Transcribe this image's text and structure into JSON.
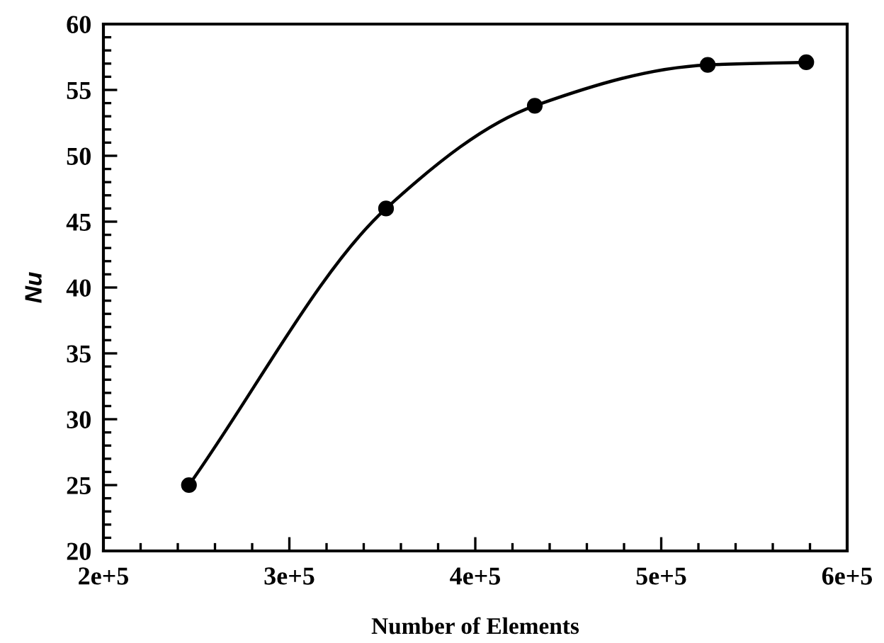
{
  "chart_data": {
    "type": "line",
    "xlabel": "Number of Elements",
    "ylabel": "Nu",
    "x": [
      246000,
      352000,
      432000,
      525000,
      578000
    ],
    "series": [
      {
        "color": "#000000",
        "values": [
          25.0,
          46.0,
          53.8,
          56.9,
          57.1
        ]
      }
    ],
    "marker": "circle",
    "line_style": "solid",
    "grid": false,
    "legend": false,
    "xlim": [
      200000,
      600000
    ],
    "xticks": [
      {
        "value": 200000,
        "label": "2e+5"
      },
      {
        "value": 220000,
        "label": null
      },
      {
        "value": 240000,
        "label": null
      },
      {
        "value": 260000,
        "label": null
      },
      {
        "value": 280000,
        "label": null
      },
      {
        "value": 300000,
        "label": "3e+5"
      },
      {
        "value": 320000,
        "label": null
      },
      {
        "value": 340000,
        "label": null
      },
      {
        "value": 360000,
        "label": null
      },
      {
        "value": 380000,
        "label": null
      },
      {
        "value": 400000,
        "label": "4e+5"
      },
      {
        "value": 420000,
        "label": null
      },
      {
        "value": 440000,
        "label": null
      },
      {
        "value": 460000,
        "label": null
      },
      {
        "value": 480000,
        "label": null
      },
      {
        "value": 500000,
        "label": "5e+5"
      },
      {
        "value": 520000,
        "label": null
      },
      {
        "value": 540000,
        "label": null
      },
      {
        "value": 560000,
        "label": null
      },
      {
        "value": 580000,
        "label": null
      },
      {
        "value": 600000,
        "label": "6e+5"
      }
    ],
    "ylim": [
      20,
      60
    ],
    "yticks": [
      20,
      {
        "value": 21,
        "label": null
      },
      {
        "value": 22,
        "label": null
      },
      {
        "value": 23,
        "label": null
      },
      {
        "value": 24,
        "label": null
      },
      25,
      {
        "value": 26,
        "label": null
      },
      {
        "value": 27,
        "label": null
      },
      {
        "value": 28,
        "label": null
      },
      {
        "value": 29,
        "label": null
      },
      30,
      {
        "value": 31,
        "label": null
      },
      {
        "value": 32,
        "label": null
      },
      {
        "value": 33,
        "label": null
      },
      {
        "value": 34,
        "label": null
      },
      35,
      {
        "value": 36,
        "label": null
      },
      {
        "value": 37,
        "label": null
      },
      {
        "value": 38,
        "label": null
      },
      {
        "value": 39,
        "label": null
      },
      40,
      {
        "value": 41,
        "label": null
      },
      {
        "value": 42,
        "label": null
      },
      {
        "value": 43,
        "label": null
      },
      {
        "value": 44,
        "label": null
      },
      45,
      {
        "value": 46,
        "label": null
      },
      {
        "value": 47,
        "label": null
      },
      {
        "value": 48,
        "label": null
      },
      {
        "value": 49,
        "label": null
      },
      50,
      {
        "value": 51,
        "label": null
      },
      {
        "value": 52,
        "label": null
      },
      {
        "value": 53,
        "label": null
      },
      {
        "value": 54,
        "label": null
      },
      55,
      {
        "value": 56,
        "label": null
      },
      {
        "value": 57,
        "label": null
      },
      {
        "value": 58,
        "label": null
      },
      {
        "value": 59,
        "label": null
      },
      60
    ]
  }
}
